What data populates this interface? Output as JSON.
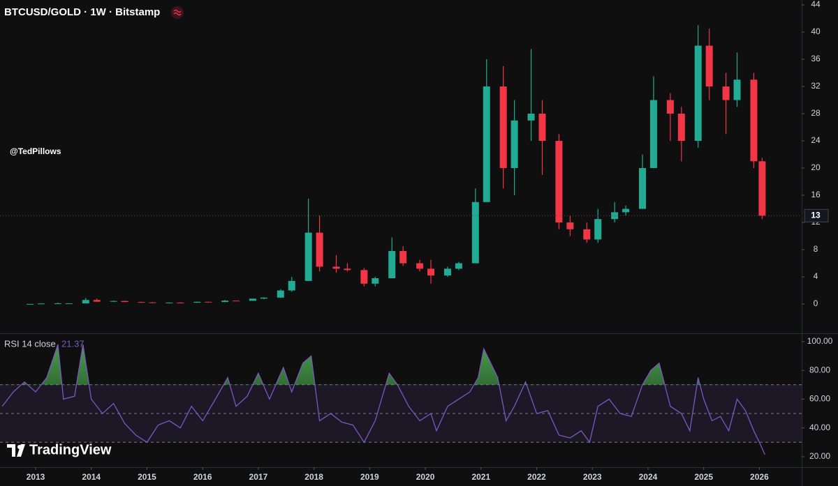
{
  "chart_data": [
    {
      "type": "candlestick",
      "title": "BTCUSD/GOLD · 1W · Bitstamp",
      "annotation": "@TedPillows",
      "brand": "TradingView",
      "x": [
        2012.9,
        2013.1,
        2013.4,
        2013.6,
        2013.9,
        2014.1,
        2014.4,
        2014.6,
        2014.9,
        2015.1,
        2015.4,
        2015.6,
        2015.9,
        2016.1,
        2016.4,
        2016.6,
        2016.9,
        2017.1,
        2017.4,
        2017.6,
        2017.9,
        2018.1,
        2018.4,
        2018.6,
        2018.9,
        2019.1,
        2019.4,
        2019.6,
        2019.9,
        2020.1,
        2020.4,
        2020.6,
        2020.9,
        2021.1,
        2021.4,
        2021.6,
        2021.9,
        2022.1,
        2022.4,
        2022.6,
        2022.9,
        2023.1,
        2023.4,
        2023.6,
        2023.9,
        2024.1,
        2024.4,
        2024.6,
        2024.9,
        2025.1,
        2025.4,
        2025.6,
        2025.9,
        2026.05
      ],
      "open": [
        0.01,
        0.02,
        0.08,
        0.1,
        0.1,
        0.6,
        0.35,
        0.45,
        0.3,
        0.25,
        0.2,
        0.22,
        0.2,
        0.33,
        0.3,
        0.5,
        0.48,
        0.8,
        0.95,
        2.0,
        3.4,
        10.5,
        5.5,
        5.2,
        5.0,
        3.0,
        3.8,
        7.8,
        6.0,
        5.2,
        4.2,
        5.2,
        6.0,
        15,
        32,
        20,
        27,
        28,
        24,
        12,
        11,
        9.5,
        12.5,
        13.5,
        14,
        20,
        30,
        28,
        24,
        38,
        32,
        30,
        33,
        21
      ],
      "high": [
        0.02,
        0.1,
        0.2,
        0.12,
        0.9,
        0.8,
        0.5,
        0.5,
        0.35,
        0.3,
        0.25,
        0.25,
        0.35,
        0.36,
        0.6,
        0.5,
        0.8,
        1.0,
        2.2,
        4.0,
        15.5,
        13,
        7.2,
        6.0,
        5.3,
        4.0,
        9.8,
        8.5,
        6.5,
        6.5,
        5.5,
        6.2,
        17,
        36,
        35,
        30,
        37.5,
        30,
        25,
        13,
        12,
        14,
        15,
        14.5,
        22,
        33.5,
        31,
        29,
        41,
        40.5,
        34,
        37,
        34,
        21.5
      ],
      "low": [
        0.01,
        0.02,
        0.06,
        0.08,
        0.1,
        0.3,
        0.3,
        0.3,
        0.2,
        0.15,
        0.18,
        0.18,
        0.2,
        0.28,
        0.3,
        0.45,
        0.48,
        0.7,
        0.9,
        1.8,
        3.4,
        4.8,
        4.6,
        4.8,
        2.6,
        2.6,
        3.8,
        5.6,
        4.8,
        3.0,
        4.0,
        5.0,
        6.0,
        15,
        17,
        16,
        24,
        19,
        11,
        10,
        9,
        9,
        12,
        13,
        14,
        20,
        24,
        21,
        23,
        30,
        25,
        29,
        20,
        12.5
      ],
      "close": [
        0.02,
        0.08,
        0.1,
        0.1,
        0.6,
        0.35,
        0.45,
        0.3,
        0.25,
        0.2,
        0.22,
        0.2,
        0.33,
        0.3,
        0.5,
        0.48,
        0.8,
        0.95,
        2.0,
        3.4,
        10.5,
        5.5,
        5.2,
        5.0,
        3.0,
        3.8,
        7.8,
        6.0,
        5.2,
        4.2,
        5.2,
        6.0,
        15,
        32,
        20,
        27,
        28,
        24,
        12,
        11,
        9.5,
        12.5,
        13.5,
        14,
        20,
        30,
        28,
        24,
        38,
        32,
        30,
        33,
        21,
        13
      ],
      "last_price": 13,
      "up_color": "#22ab94",
      "down_color": "#f23645",
      "xlim": [
        2012.36,
        2026.76
      ],
      "xticks": [
        2013,
        2014,
        2015,
        2016,
        2017,
        2018,
        2019,
        2020,
        2021,
        2022,
        2023,
        2024,
        2025,
        2026
      ],
      "ylim": [
        -4.3,
        44
      ],
      "yticks": [
        0,
        4,
        8,
        12,
        16,
        20,
        24,
        28,
        32,
        36,
        40,
        44
      ],
      "grid": false
    },
    {
      "type": "line",
      "title": "RSI 14 close",
      "current": 21.37,
      "color": "#7e57c2",
      "x": [
        2012.4,
        2012.6,
        2012.8,
        2013.0,
        2013.2,
        2013.4,
        2013.5,
        2013.7,
        2013.85,
        2014.0,
        2014.2,
        2014.4,
        2014.6,
        2014.8,
        2015.0,
        2015.2,
        2015.4,
        2015.6,
        2015.8,
        2016.0,
        2016.2,
        2016.45,
        2016.6,
        2016.8,
        2017.0,
        2017.2,
        2017.45,
        2017.6,
        2017.8,
        2017.95,
        2018.1,
        2018.3,
        2018.5,
        2018.7,
        2018.9,
        2019.1,
        2019.35,
        2019.5,
        2019.7,
        2019.9,
        2020.1,
        2020.2,
        2020.4,
        2020.6,
        2020.8,
        2020.95,
        2021.05,
        2021.3,
        2021.45,
        2021.6,
        2021.8,
        2022.0,
        2022.2,
        2022.4,
        2022.6,
        2022.8,
        2022.95,
        2023.1,
        2023.3,
        2023.5,
        2023.7,
        2023.9,
        2024.05,
        2024.2,
        2024.4,
        2024.6,
        2024.75,
        2024.9,
        2025.0,
        2025.15,
        2025.3,
        2025.45,
        2025.6,
        2025.75,
        2025.9,
        2026.0,
        2026.1
      ],
      "values": [
        55,
        65,
        72,
        65,
        75,
        98,
        60,
        62,
        98,
        60,
        50,
        57,
        43,
        35,
        30,
        42,
        45,
        40,
        55,
        45,
        58,
        75,
        55,
        62,
        78,
        60,
        82,
        65,
        85,
        90,
        45,
        50,
        44,
        42,
        30,
        45,
        78,
        70,
        55,
        45,
        50,
        38,
        55,
        60,
        65,
        75,
        95,
        75,
        45,
        55,
        72,
        50,
        52,
        35,
        33,
        38,
        30,
        55,
        60,
        50,
        48,
        70,
        80,
        85,
        55,
        50,
        38,
        75,
        60,
        45,
        48,
        38,
        60,
        52,
        38,
        30,
        21.37
      ],
      "levels": [
        30,
        50,
        70
      ],
      "ylim": [
        12.7,
        104.8
      ],
      "yticks": [
        {
          "value": 20,
          "label": "20.00"
        },
        {
          "value": 40,
          "label": "40.00"
        },
        {
          "value": 60,
          "label": "60.00"
        },
        {
          "value": 80,
          "label": "80.00"
        },
        {
          "value": 100,
          "label": "100.00"
        }
      ]
    }
  ]
}
